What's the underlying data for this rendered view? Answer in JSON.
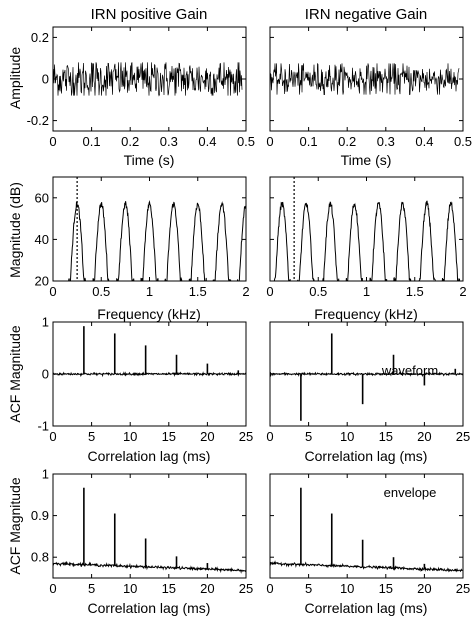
{
  "chart_data": [
    {
      "id": "p11",
      "type": "line",
      "title": "IRN positive Gain",
      "xlabel": "Time (s)",
      "ylabel": "Amplitude",
      "xlim": [
        0,
        0.5
      ],
      "ylim": [
        -0.25,
        0.25
      ],
      "xticks": [
        0,
        0.1,
        0.2,
        0.3,
        0.4,
        0.5
      ],
      "yticks": [
        -0.2,
        0,
        0.2
      ],
      "xtick_labels": [
        "0",
        "0.1",
        "0.2",
        "0.3",
        "0.4",
        "0.5"
      ],
      "ytick_labels": [
        "-0.2",
        "0",
        "0.2"
      ],
      "series": [
        {
          "kind": "noise",
          "x_range": [
            0,
            0.49
          ],
          "amplitude": 0.08,
          "rms": 0.05
        }
      ]
    },
    {
      "id": "p12",
      "type": "line",
      "title": "IRN negative Gain",
      "xlabel": "Time (s)",
      "ylabel": "",
      "xlim": [
        0,
        0.5
      ],
      "ylim": [
        -0.25,
        0.25
      ],
      "xticks": [
        0,
        0.1,
        0.2,
        0.3,
        0.4,
        0.5
      ],
      "yticks": [
        -0.2,
        0,
        0.2
      ],
      "xtick_labels": [
        "0",
        "0.1",
        "0.2",
        "0.3",
        "0.4",
        "0.5"
      ],
      "ytick_labels": [
        "",
        "",
        ""
      ],
      "series": [
        {
          "kind": "noise",
          "x_range": [
            0,
            0.49
          ],
          "amplitude": 0.075,
          "rms": 0.04
        }
      ]
    },
    {
      "id": "p21",
      "type": "line",
      "title": "",
      "xlabel": "Frequency (kHz)",
      "ylabel": "Magnitude (dB)",
      "xlim": [
        0,
        2
      ],
      "ylim": [
        20,
        70
      ],
      "xticks": [
        0,
        0.5,
        1,
        1.5,
        2
      ],
      "yticks": [
        20,
        40,
        60
      ],
      "xtick_labels": [
        "0",
        "0.5",
        "1",
        "1.5",
        "2"
      ],
      "ytick_labels": [
        "20",
        "40",
        "60"
      ],
      "marker_line_x": 0.25,
      "series": [
        {
          "kind": "comb",
          "peak_freqs": [
            0.25,
            0.5,
            0.75,
            1.0,
            1.25,
            1.5,
            1.75,
            2.0
          ],
          "peak_db": 57,
          "floor_db": 20,
          "half_width": 0.07
        }
      ]
    },
    {
      "id": "p22",
      "type": "line",
      "title": "",
      "xlabel": "Frequency (kHz)",
      "ylabel": "",
      "xlim": [
        0,
        2
      ],
      "ylim": [
        20,
        70
      ],
      "xticks": [
        0,
        0.5,
        1,
        1.5,
        2
      ],
      "yticks": [
        20,
        40,
        60
      ],
      "xtick_labels": [
        "0",
        "0.5",
        "1",
        "1.5",
        "2"
      ],
      "ytick_labels": [
        "",
        "",
        ""
      ],
      "marker_line_x": 0.25,
      "series": [
        {
          "kind": "comb",
          "peak_freqs": [
            0.125,
            0.375,
            0.625,
            0.875,
            1.125,
            1.375,
            1.625,
            1.875
          ],
          "peak_db": 57,
          "floor_db": 20,
          "half_width": 0.07
        }
      ]
    },
    {
      "id": "p31",
      "type": "line",
      "title": "",
      "xlabel": "Correlation lag (ms)",
      "ylabel": "ACF Magnitude",
      "xlim": [
        0,
        25
      ],
      "ylim": [
        -1,
        1
      ],
      "xticks": [
        0,
        5,
        10,
        15,
        20,
        25
      ],
      "yticks": [
        -1,
        0,
        1
      ],
      "xtick_labels": [
        "0",
        "5",
        "10",
        "15",
        "20",
        "25"
      ],
      "ytick_labels": [
        "-1",
        "0",
        "1"
      ],
      "annotation": "",
      "series": [
        {
          "kind": "spikes",
          "baseline": 0,
          "noise": 0.01,
          "spikes": [
            [
              4,
              0.92
            ],
            [
              8,
              0.78
            ],
            [
              12,
              0.55
            ],
            [
              16,
              0.37
            ],
            [
              20,
              0.2
            ],
            [
              24,
              0.07
            ]
          ]
        }
      ]
    },
    {
      "id": "p32",
      "type": "line",
      "title": "",
      "xlabel": "Correlation lag (ms)",
      "ylabel": "",
      "xlim": [
        0,
        25
      ],
      "ylim": [
        -1,
        1
      ],
      "xticks": [
        0,
        5,
        10,
        15,
        20,
        25
      ],
      "yticks": [
        -1,
        0,
        1
      ],
      "xtick_labels": [
        "0",
        "5",
        "10",
        "15",
        "20",
        "25"
      ],
      "ytick_labels": [
        "",
        "",
        ""
      ],
      "annotation": "waveform",
      "series": [
        {
          "kind": "spikes",
          "baseline": 0,
          "noise": 0.01,
          "spikes": [
            [
              4,
              -0.9
            ],
            [
              8,
              0.78
            ],
            [
              12,
              -0.58
            ],
            [
              16,
              0.37
            ],
            [
              20,
              -0.22
            ],
            [
              24,
              0.1
            ]
          ]
        }
      ]
    },
    {
      "id": "p41",
      "type": "line",
      "title": "",
      "xlabel": "Correlation lag (ms)",
      "ylabel": "ACF Magnitude",
      "xlim": [
        0,
        25
      ],
      "ylim": [
        0.75,
        1.0
      ],
      "xticks": [
        0,
        5,
        10,
        15,
        20,
        25
      ],
      "yticks": [
        0.8,
        0.9,
        1
      ],
      "xtick_labels": [
        "0",
        "5",
        "10",
        "15",
        "20",
        "25"
      ],
      "ytick_labels": [
        "0.8",
        "0.9",
        "1"
      ],
      "annotation": "",
      "series": [
        {
          "kind": "spikes",
          "baseline_start": 0.785,
          "baseline_end": 0.768,
          "noise": 0.0015,
          "spikes": [
            [
              4,
              0.967
            ],
            [
              8,
              0.905
            ],
            [
              12,
              0.845
            ],
            [
              16,
              0.802
            ],
            [
              20,
              0.786
            ],
            [
              24,
              0.772
            ]
          ]
        }
      ]
    },
    {
      "id": "p42",
      "type": "line",
      "title": "",
      "xlabel": "Correlation lag (ms)",
      "ylabel": "",
      "xlim": [
        0,
        25
      ],
      "ylim": [
        0.75,
        1.0
      ],
      "xticks": [
        0,
        5,
        10,
        15,
        20,
        25
      ],
      "yticks": [
        0.8,
        0.9,
        1
      ],
      "xtick_labels": [
        "0",
        "5",
        "10",
        "15",
        "20",
        "25"
      ],
      "ytick_labels": [
        "",
        "",
        ""
      ],
      "annotation": "envelope",
      "series": [
        {
          "kind": "spikes",
          "baseline_start": 0.785,
          "baseline_end": 0.768,
          "noise": 0.0015,
          "spikes": [
            [
              4,
              0.967
            ],
            [
              8,
              0.905
            ],
            [
              12,
              0.842
            ],
            [
              16,
              0.8
            ],
            [
              20,
              0.784
            ],
            [
              24,
              0.772
            ]
          ]
        }
      ]
    }
  ]
}
